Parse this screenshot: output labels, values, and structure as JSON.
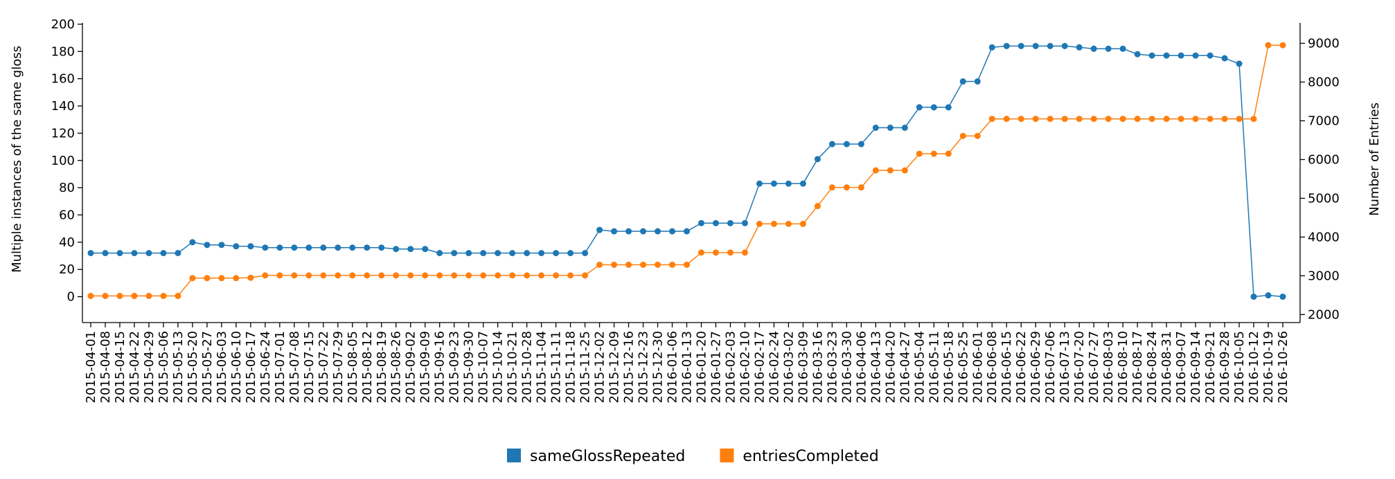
{
  "chart_data": {
    "type": "line",
    "categories": [
      "2015-04-01",
      "2015-04-08",
      "2015-04-15",
      "2015-04-22",
      "2015-04-29",
      "2015-05-06",
      "2015-05-13",
      "2015-05-20",
      "2015-05-27",
      "2015-06-03",
      "2015-06-10",
      "2015-06-17",
      "2015-06-24",
      "2015-07-01",
      "2015-07-08",
      "2015-07-15",
      "2015-07-22",
      "2015-07-29",
      "2015-08-05",
      "2015-08-12",
      "2015-08-19",
      "2015-08-26",
      "2015-09-02",
      "2015-09-09",
      "2015-09-16",
      "2015-09-23",
      "2015-09-30",
      "2015-10-07",
      "2015-10-14",
      "2015-10-21",
      "2015-10-28",
      "2015-11-04",
      "2015-11-11",
      "2015-11-18",
      "2015-11-25",
      "2015-12-02",
      "2015-12-09",
      "2015-12-16",
      "2015-12-23",
      "2015-12-30",
      "2016-01-06",
      "2016-01-13",
      "2016-01-20",
      "2016-01-27",
      "2016-02-03",
      "2016-02-10",
      "2016-02-17",
      "2016-02-24",
      "2016-03-02",
      "2016-03-09",
      "2016-03-16",
      "2016-03-23",
      "2016-03-30",
      "2016-04-06",
      "2016-04-13",
      "2016-04-20",
      "2016-04-27",
      "2016-05-04",
      "2016-05-11",
      "2016-05-18",
      "2016-05-25",
      "2016-06-01",
      "2016-06-08",
      "2016-06-15",
      "2016-06-22",
      "2016-06-29",
      "2016-07-06",
      "2016-07-13",
      "2016-07-20",
      "2016-07-27",
      "2016-08-03",
      "2016-08-10",
      "2016-08-17",
      "2016-08-24",
      "2016-08-31",
      "2016-09-07",
      "2016-09-14",
      "2016-09-21",
      "2016-09-28",
      "2016-10-05",
      "2016-10-12",
      "2016-10-19",
      "2016-10-26"
    ],
    "series": [
      {
        "name": "sameGlossRepeated",
        "color": "#1f77b4",
        "axis": "y",
        "values": [
          32,
          32,
          32,
          32,
          32,
          32,
          32,
          40,
          38,
          38,
          37,
          37,
          36,
          36,
          36,
          36,
          36,
          36,
          36,
          36,
          36,
          35,
          35,
          35,
          32,
          32,
          32,
          32,
          32,
          32,
          32,
          32,
          32,
          32,
          32,
          49,
          48,
          48,
          48,
          48,
          48,
          48,
          54,
          54,
          54,
          54,
          83,
          83,
          83,
          83,
          101,
          112,
          112,
          112,
          124,
          124,
          124,
          139,
          139,
          139,
          158,
          158,
          183,
          184,
          184,
          184,
          184,
          184,
          183,
          182,
          182,
          182,
          178,
          177,
          177,
          177,
          177,
          177,
          175,
          171,
          0,
          1,
          0
        ]
      },
      {
        "name": "entriesCompleted",
        "color": "#ff7f0e",
        "axis": "y2",
        "values": [
          2480,
          2480,
          2480,
          2480,
          2480,
          2480,
          2480,
          2940,
          2940,
          2940,
          2940,
          2950,
          3010,
          3010,
          3010,
          3010,
          3010,
          3010,
          3010,
          3010,
          3010,
          3010,
          3010,
          3010,
          3010,
          3010,
          3010,
          3010,
          3010,
          3010,
          3010,
          3010,
          3010,
          3010,
          3010,
          3285,
          3285,
          3285,
          3285,
          3285,
          3285,
          3285,
          3600,
          3600,
          3600,
          3600,
          4340,
          4340,
          4340,
          4340,
          4800,
          5280,
          5280,
          5280,
          5720,
          5720,
          5720,
          6150,
          6150,
          6150,
          6610,
          6610,
          7050,
          7050,
          7050,
          7050,
          7050,
          7050,
          7050,
          7050,
          7050,
          7050,
          7050,
          7050,
          7050,
          7050,
          7050,
          7050,
          7050,
          7050,
          7050,
          8950,
          8950
        ]
      }
    ],
    "y_label": "Multiple instances of the same gloss",
    "y2_label": "Number of Entries",
    "ylim": [
      -19,
      201
    ],
    "yticks": [
      0,
      20,
      40,
      60,
      80,
      100,
      120,
      140,
      160,
      180,
      200
    ],
    "y2lim": [
      1793,
      9528
    ],
    "y2ticks": [
      2000,
      3000,
      4000,
      5000,
      6000,
      7000,
      8000,
      9000
    ],
    "legend": "bottom"
  }
}
